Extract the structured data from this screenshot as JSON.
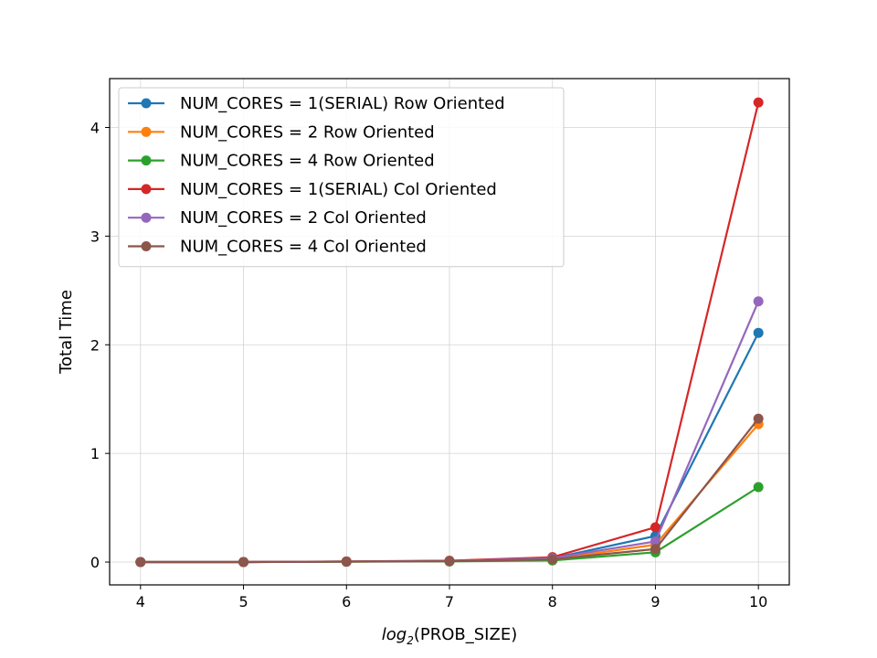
{
  "chart_data": {
    "type": "line",
    "title": "",
    "xlabel_prefix": "log",
    "xlabel_sub": "2",
    "xlabel_rest": "(PROB_SIZE)",
    "ylabel": "Total Time",
    "x": [
      4,
      5,
      6,
      7,
      8,
      9,
      10
    ],
    "xlim": [
      3.7,
      10.3
    ],
    "ylim": [
      -0.21,
      4.45
    ],
    "xticks": [
      4,
      5,
      6,
      7,
      8,
      9,
      10
    ],
    "yticks": [
      0,
      1,
      2,
      3,
      4
    ],
    "grid": true,
    "legend_position": "upper-left",
    "series": [
      {
        "name": "NUM_CORES = 1(SERIAL) Row Oriented",
        "color": "#1f77b4",
        "values": [
          0.0,
          0.0,
          0.005,
          0.01,
          0.035,
          0.24,
          2.11
        ]
      },
      {
        "name": "NUM_CORES = 2 Row Oriented",
        "color": "#ff7f0e",
        "values": [
          0.0,
          0.0,
          0.004,
          0.008,
          0.025,
          0.16,
          1.27
        ]
      },
      {
        "name": "NUM_CORES = 4 Row Oriented",
        "color": "#2ca02c",
        "values": [
          0.0,
          0.0,
          0.003,
          0.006,
          0.015,
          0.09,
          0.69
        ]
      },
      {
        "name": "NUM_CORES = 1(SERIAL) Col Oriented",
        "color": "#d62728",
        "values": [
          0.0,
          0.0,
          0.006,
          0.013,
          0.045,
          0.32,
          4.23
        ]
      },
      {
        "name": "NUM_CORES = 2 Col Oriented",
        "color": "#9467bd",
        "values": [
          0.0,
          0.0,
          0.005,
          0.01,
          0.035,
          0.19,
          2.4
        ]
      },
      {
        "name": "NUM_CORES = 4 Col Oriented",
        "color": "#8c564b",
        "values": [
          0.0,
          0.0,
          0.004,
          0.008,
          0.025,
          0.12,
          1.32
        ]
      }
    ]
  }
}
